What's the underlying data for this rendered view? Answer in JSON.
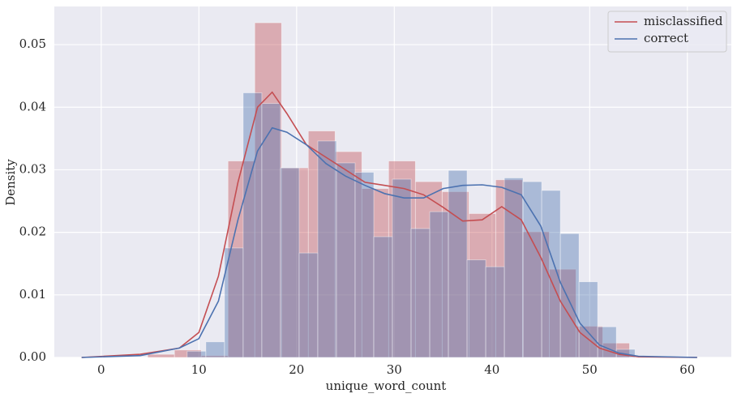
{
  "chart_data": {
    "type": "histogram_kde",
    "x_label": "unique_word_count",
    "y_label": "Density",
    "xlim": [
      -4.8,
      64.5
    ],
    "ylim": [
      0,
      0.0561
    ],
    "xticks": [
      0,
      10,
      20,
      30,
      40,
      50,
      60
    ],
    "yticks": [
      {
        "value": 0,
        "label": "0.00"
      },
      {
        "value": 0.01,
        "label": "0.01"
      },
      {
        "value": 0.02,
        "label": "0.02"
      },
      {
        "value": 0.03,
        "label": "0.03"
      },
      {
        "value": 0.04,
        "label": "0.04"
      },
      {
        "value": 0.05,
        "label": "0.05"
      }
    ],
    "grid": true,
    "legend": "upper right",
    "series": [
      {
        "name": "misclassified",
        "color": "#c44e52",
        "bins": [
          4.76,
          7.5,
          10.24,
          12.98,
          15.72,
          18.46,
          21.2,
          23.94,
          26.68,
          29.42,
          32.16,
          34.9,
          37.64,
          40.38,
          43.12,
          45.86,
          48.6,
          51.34,
          54.08
        ],
        "values": [
          0.0005,
          0.0012,
          0.0003,
          0.0314,
          0.0535,
          0.0303,
          0.0362,
          0.0329,
          0.027,
          0.0314,
          0.0281,
          0.0265,
          0.023,
          0.0284,
          0.0201,
          0.0141,
          0.005,
          0.0023
        ],
        "kde_x": [
          -2,
          4,
          6,
          8,
          10,
          12,
          14,
          16,
          17.5,
          19,
          21,
          23,
          25,
          27,
          29,
          31,
          33,
          35,
          37,
          39,
          41,
          43,
          45,
          47,
          49,
          51,
          53,
          55,
          61
        ],
        "kde_values": [
          0,
          0.0005,
          0.001,
          0.0015,
          0.004,
          0.013,
          0.028,
          0.04,
          0.0424,
          0.039,
          0.034,
          0.032,
          0.03,
          0.028,
          0.0275,
          0.027,
          0.026,
          0.024,
          0.0218,
          0.022,
          0.0241,
          0.022,
          0.016,
          0.009,
          0.004,
          0.0015,
          0.0005,
          0.0001,
          0
        ]
      },
      {
        "name": "correct",
        "color": "#4c72b0",
        "bins": [
          8.8,
          10.71,
          12.62,
          14.53,
          16.44,
          18.35,
          20.26,
          22.17,
          24.08,
          25.99,
          27.9,
          29.81,
          31.72,
          33.63,
          35.54,
          37.45,
          39.36,
          41.27,
          43.18,
          45.09,
          47.0,
          48.91,
          50.82,
          52.73,
          54.64
        ],
        "values": [
          0.001,
          0.0025,
          0.0175,
          0.0423,
          0.0406,
          0.0303,
          0.0167,
          0.0346,
          0.0311,
          0.0296,
          0.0193,
          0.0285,
          0.0206,
          0.0233,
          0.0299,
          0.0156,
          0.0145,
          0.0287,
          0.0281,
          0.0267,
          0.0198,
          0.0121,
          0.0049,
          0.0013
        ],
        "kde_x": [
          -2,
          4,
          8,
          10,
          12,
          14,
          16,
          17.5,
          19,
          21,
          23,
          25,
          27,
          29,
          31,
          33,
          35,
          37,
          39,
          41,
          43,
          45,
          47,
          49,
          51,
          53,
          55,
          61
        ],
        "kde_values": [
          0,
          0.0003,
          0.0015,
          0.003,
          0.009,
          0.022,
          0.033,
          0.0367,
          0.036,
          0.034,
          0.031,
          0.029,
          0.0275,
          0.0262,
          0.0255,
          0.0255,
          0.027,
          0.0275,
          0.0276,
          0.0272,
          0.026,
          0.021,
          0.012,
          0.0055,
          0.002,
          0.0007,
          0.0002,
          0
        ]
      }
    ]
  }
}
